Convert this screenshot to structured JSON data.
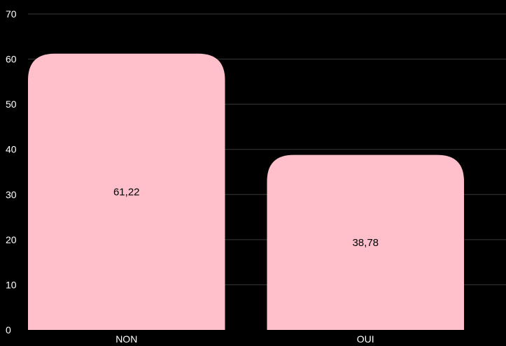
{
  "chart_data": {
    "type": "bar",
    "title": "",
    "xlabel": "",
    "ylabel": "",
    "categories": [
      "NON",
      "OUI"
    ],
    "values": [
      61.22,
      38.78
    ],
    "value_labels": [
      "61,22",
      "38,78"
    ],
    "ylim": [
      0,
      70
    ],
    "yticks": [
      0,
      10,
      20,
      30,
      40,
      50,
      60,
      70
    ],
    "grid": true,
    "legend": "none",
    "colors": {
      "background": "#000000",
      "bar": "#ffc0cb",
      "grid": "#3a3a3a",
      "axis_text": "#ffffff",
      "data_label_text": "#000000"
    }
  }
}
